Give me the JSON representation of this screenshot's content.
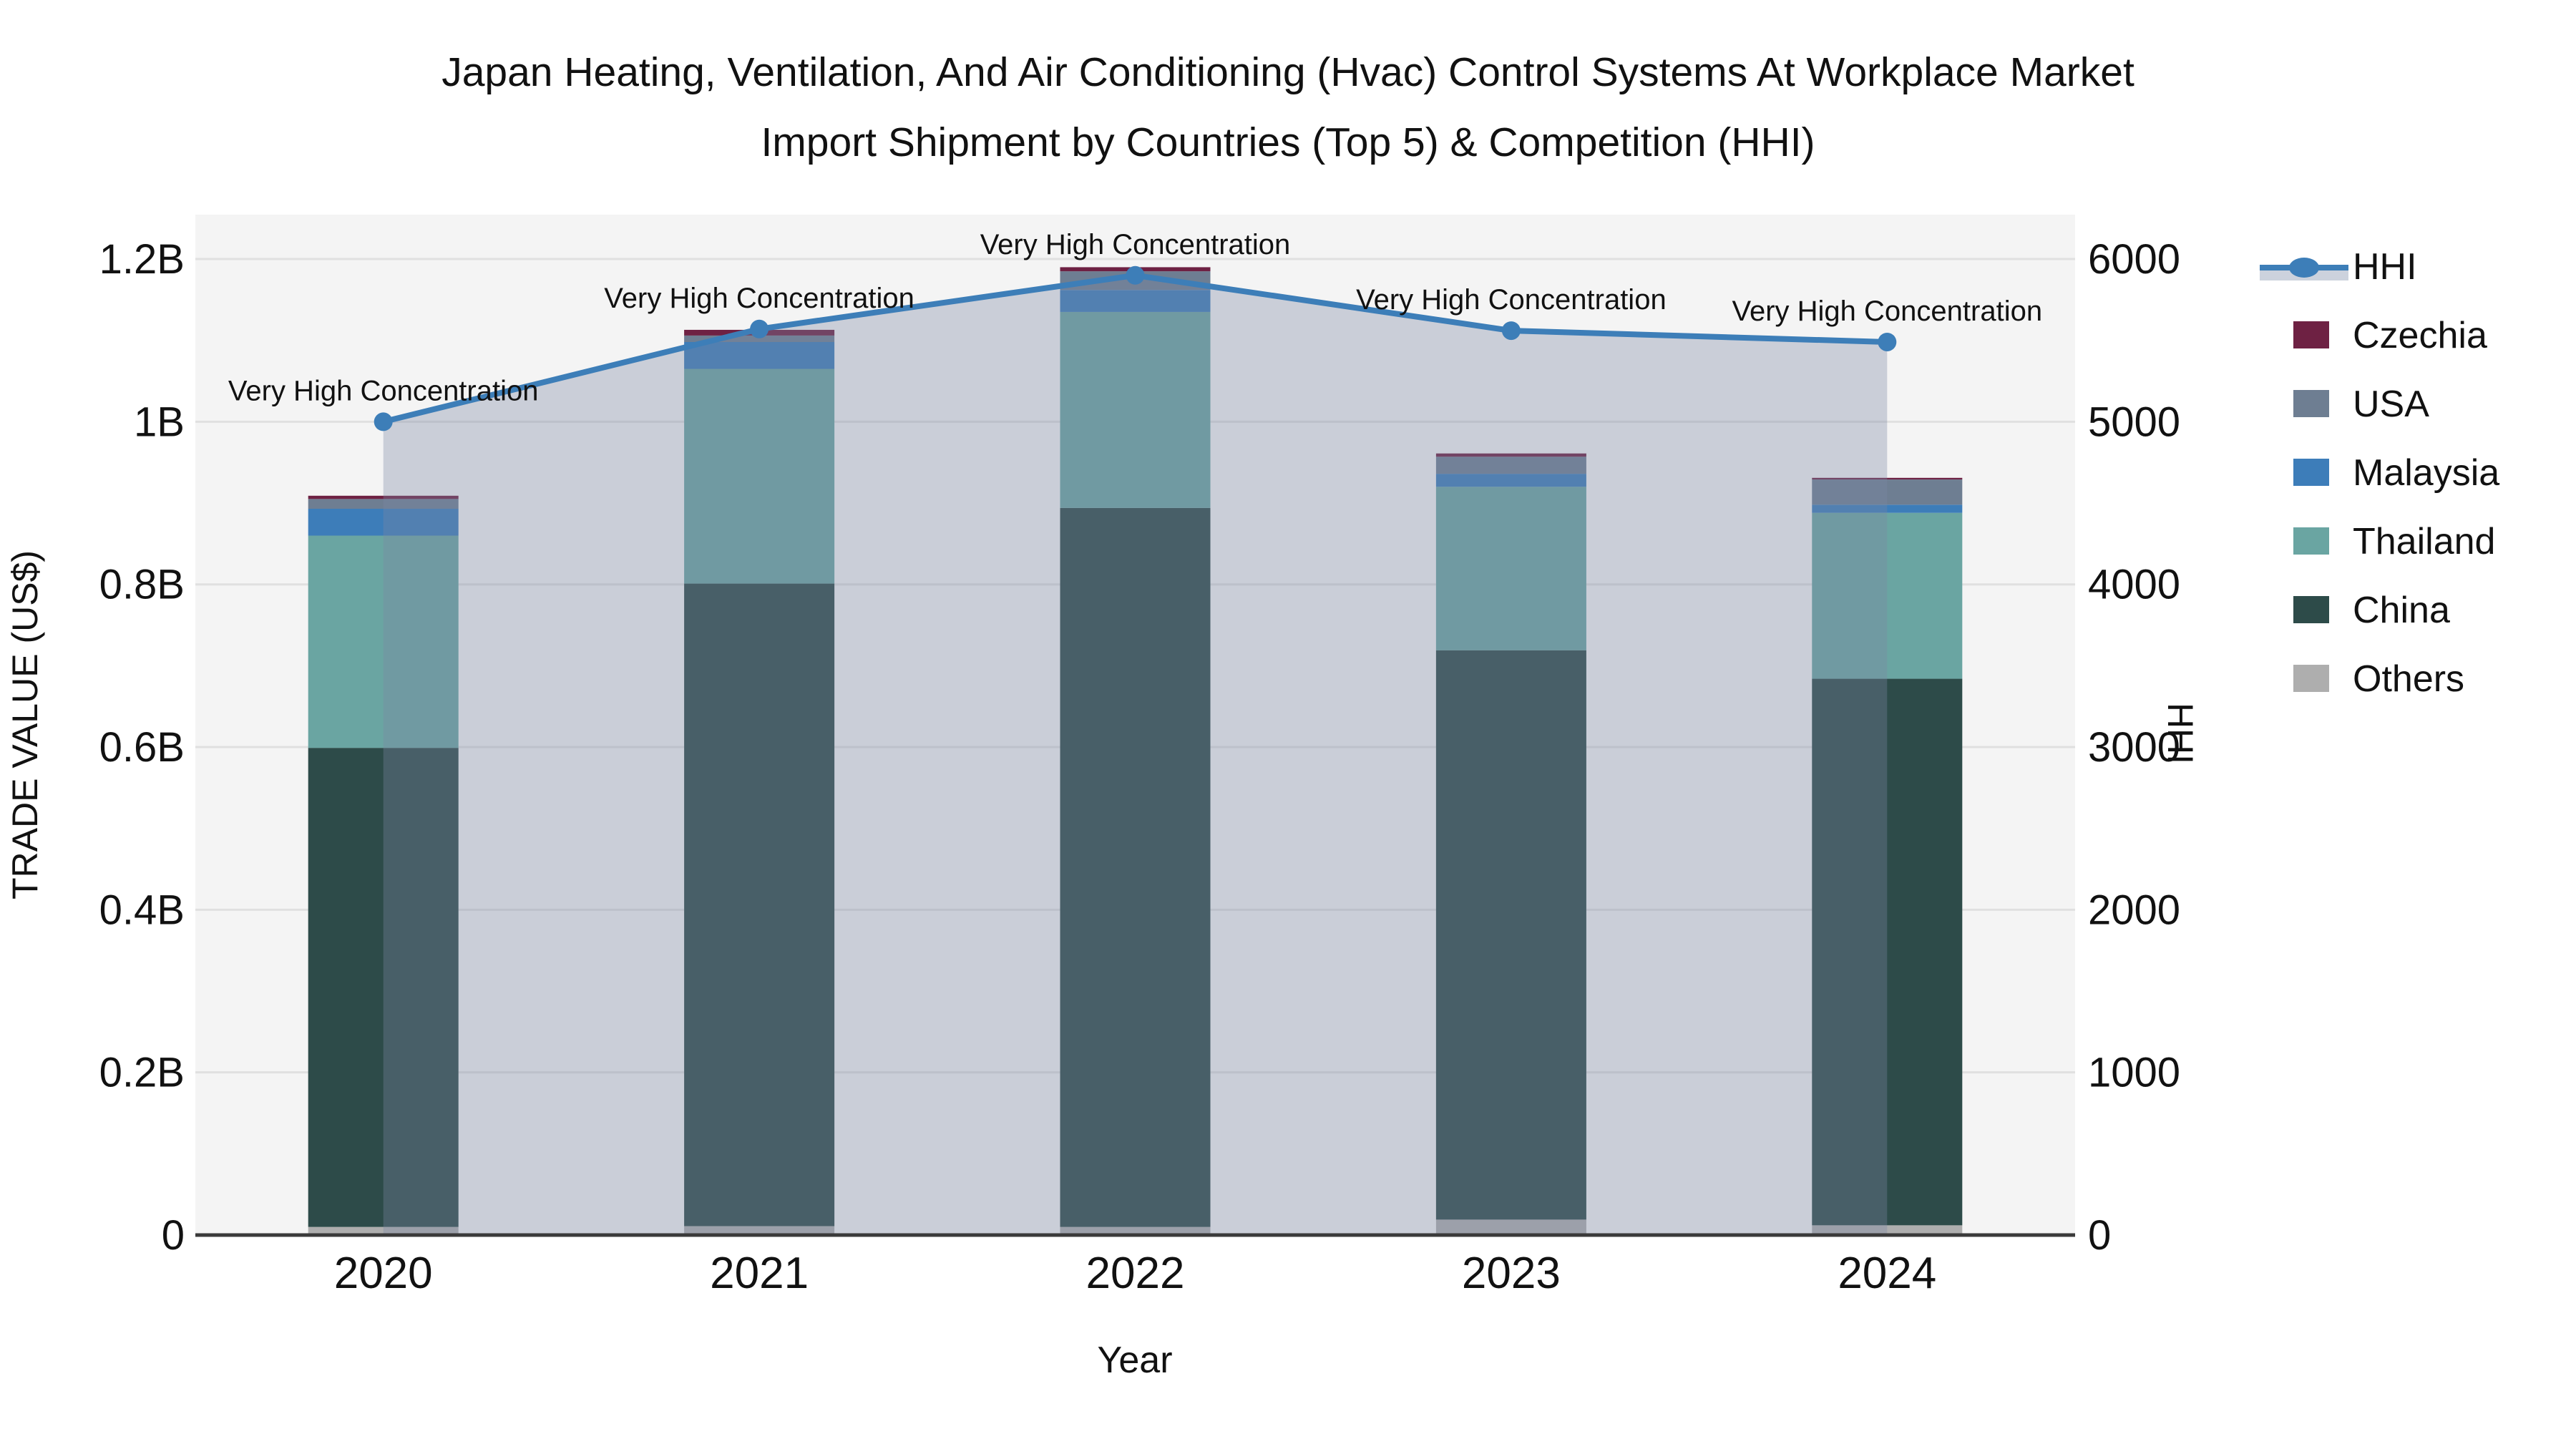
{
  "title": {
    "line1": "Japan Heating, Ventilation, And Air Conditioning (Hvac) Control Systems At Workplace Market",
    "line2": "Import Shipment by Countries (Top 5) & Competition (HHI)"
  },
  "chart_data": {
    "type": "bar",
    "stacked": true,
    "categories": [
      "2020",
      "2021",
      "2022",
      "2023",
      "2024"
    ],
    "series": [
      {
        "name": "Others",
        "color": "#aeaeae",
        "values": [
          0.01,
          0.011,
          0.01,
          0.019,
          0.012
        ]
      },
      {
        "name": "China",
        "color": "#2d4b49",
        "values": [
          0.589,
          0.79,
          0.884,
          0.7,
          0.672
        ]
      },
      {
        "name": "Thailand",
        "color": "#6aa5a2",
        "values": [
          0.261,
          0.264,
          0.241,
          0.201,
          0.204
        ]
      },
      {
        "name": "Malaysia",
        "color": "#3d7db9",
        "values": [
          0.033,
          0.033,
          0.027,
          0.016,
          0.01
        ]
      },
      {
        "name": "USA",
        "color": "#6e7e92",
        "values": [
          0.012,
          0.008,
          0.023,
          0.021,
          0.031
        ]
      },
      {
        "name": "Czechia",
        "color": "#6e2143",
        "values": [
          0.004,
          0.007,
          0.005,
          0.004,
          0.002
        ]
      }
    ],
    "line_series": {
      "name": "HHI",
      "color": "#3d7eb8",
      "area_color": "rgba(122,136,162,0.35)",
      "marker": "circle",
      "axis": "right",
      "values": [
        5000,
        5570,
        5900,
        5560,
        5490
      ]
    },
    "annotations": [
      {
        "year": "2020",
        "text": "Very High Concentration"
      },
      {
        "year": "2021",
        "text": "Very High Concentration"
      },
      {
        "year": "2022",
        "text": "Very High Concentration"
      },
      {
        "year": "2023",
        "text": "Very High Concentration"
      },
      {
        "year": "2024",
        "text": "Very High Concentration"
      }
    ],
    "xlabel": "Year",
    "ylabel_left": "TRADE VALUE (US$)",
    "ylabel_right": "HHI",
    "yticks_left": {
      "labels": [
        "0",
        "0.2B",
        "0.4B",
        "0.6B",
        "0.8B",
        "1B",
        "1.2B"
      ],
      "values": [
        0,
        0.2,
        0.4,
        0.6,
        0.8,
        1.0,
        1.2
      ]
    },
    "yticks_right": {
      "labels": [
        "0",
        "1000",
        "2000",
        "3000",
        "4000",
        "5000",
        "6000"
      ],
      "values": [
        0,
        1000,
        2000,
        3000,
        4000,
        5000,
        6000
      ]
    },
    "ylim_left": [
      0,
      1.2546
    ],
    "ylim_right": [
      0,
      6273
    ],
    "grid": true,
    "legend_position": "right",
    "legend_order": [
      "HHI",
      "Czechia",
      "USA",
      "Malaysia",
      "Thailand",
      "China",
      "Others"
    ]
  },
  "style": {
    "plot_bg": "#f4f4f4",
    "grid_color": "#e0e0e0",
    "axis_line_color": "#3a3a3a",
    "text_color": "#111111",
    "legend_hhi_band_color": "#ccd2dd"
  }
}
